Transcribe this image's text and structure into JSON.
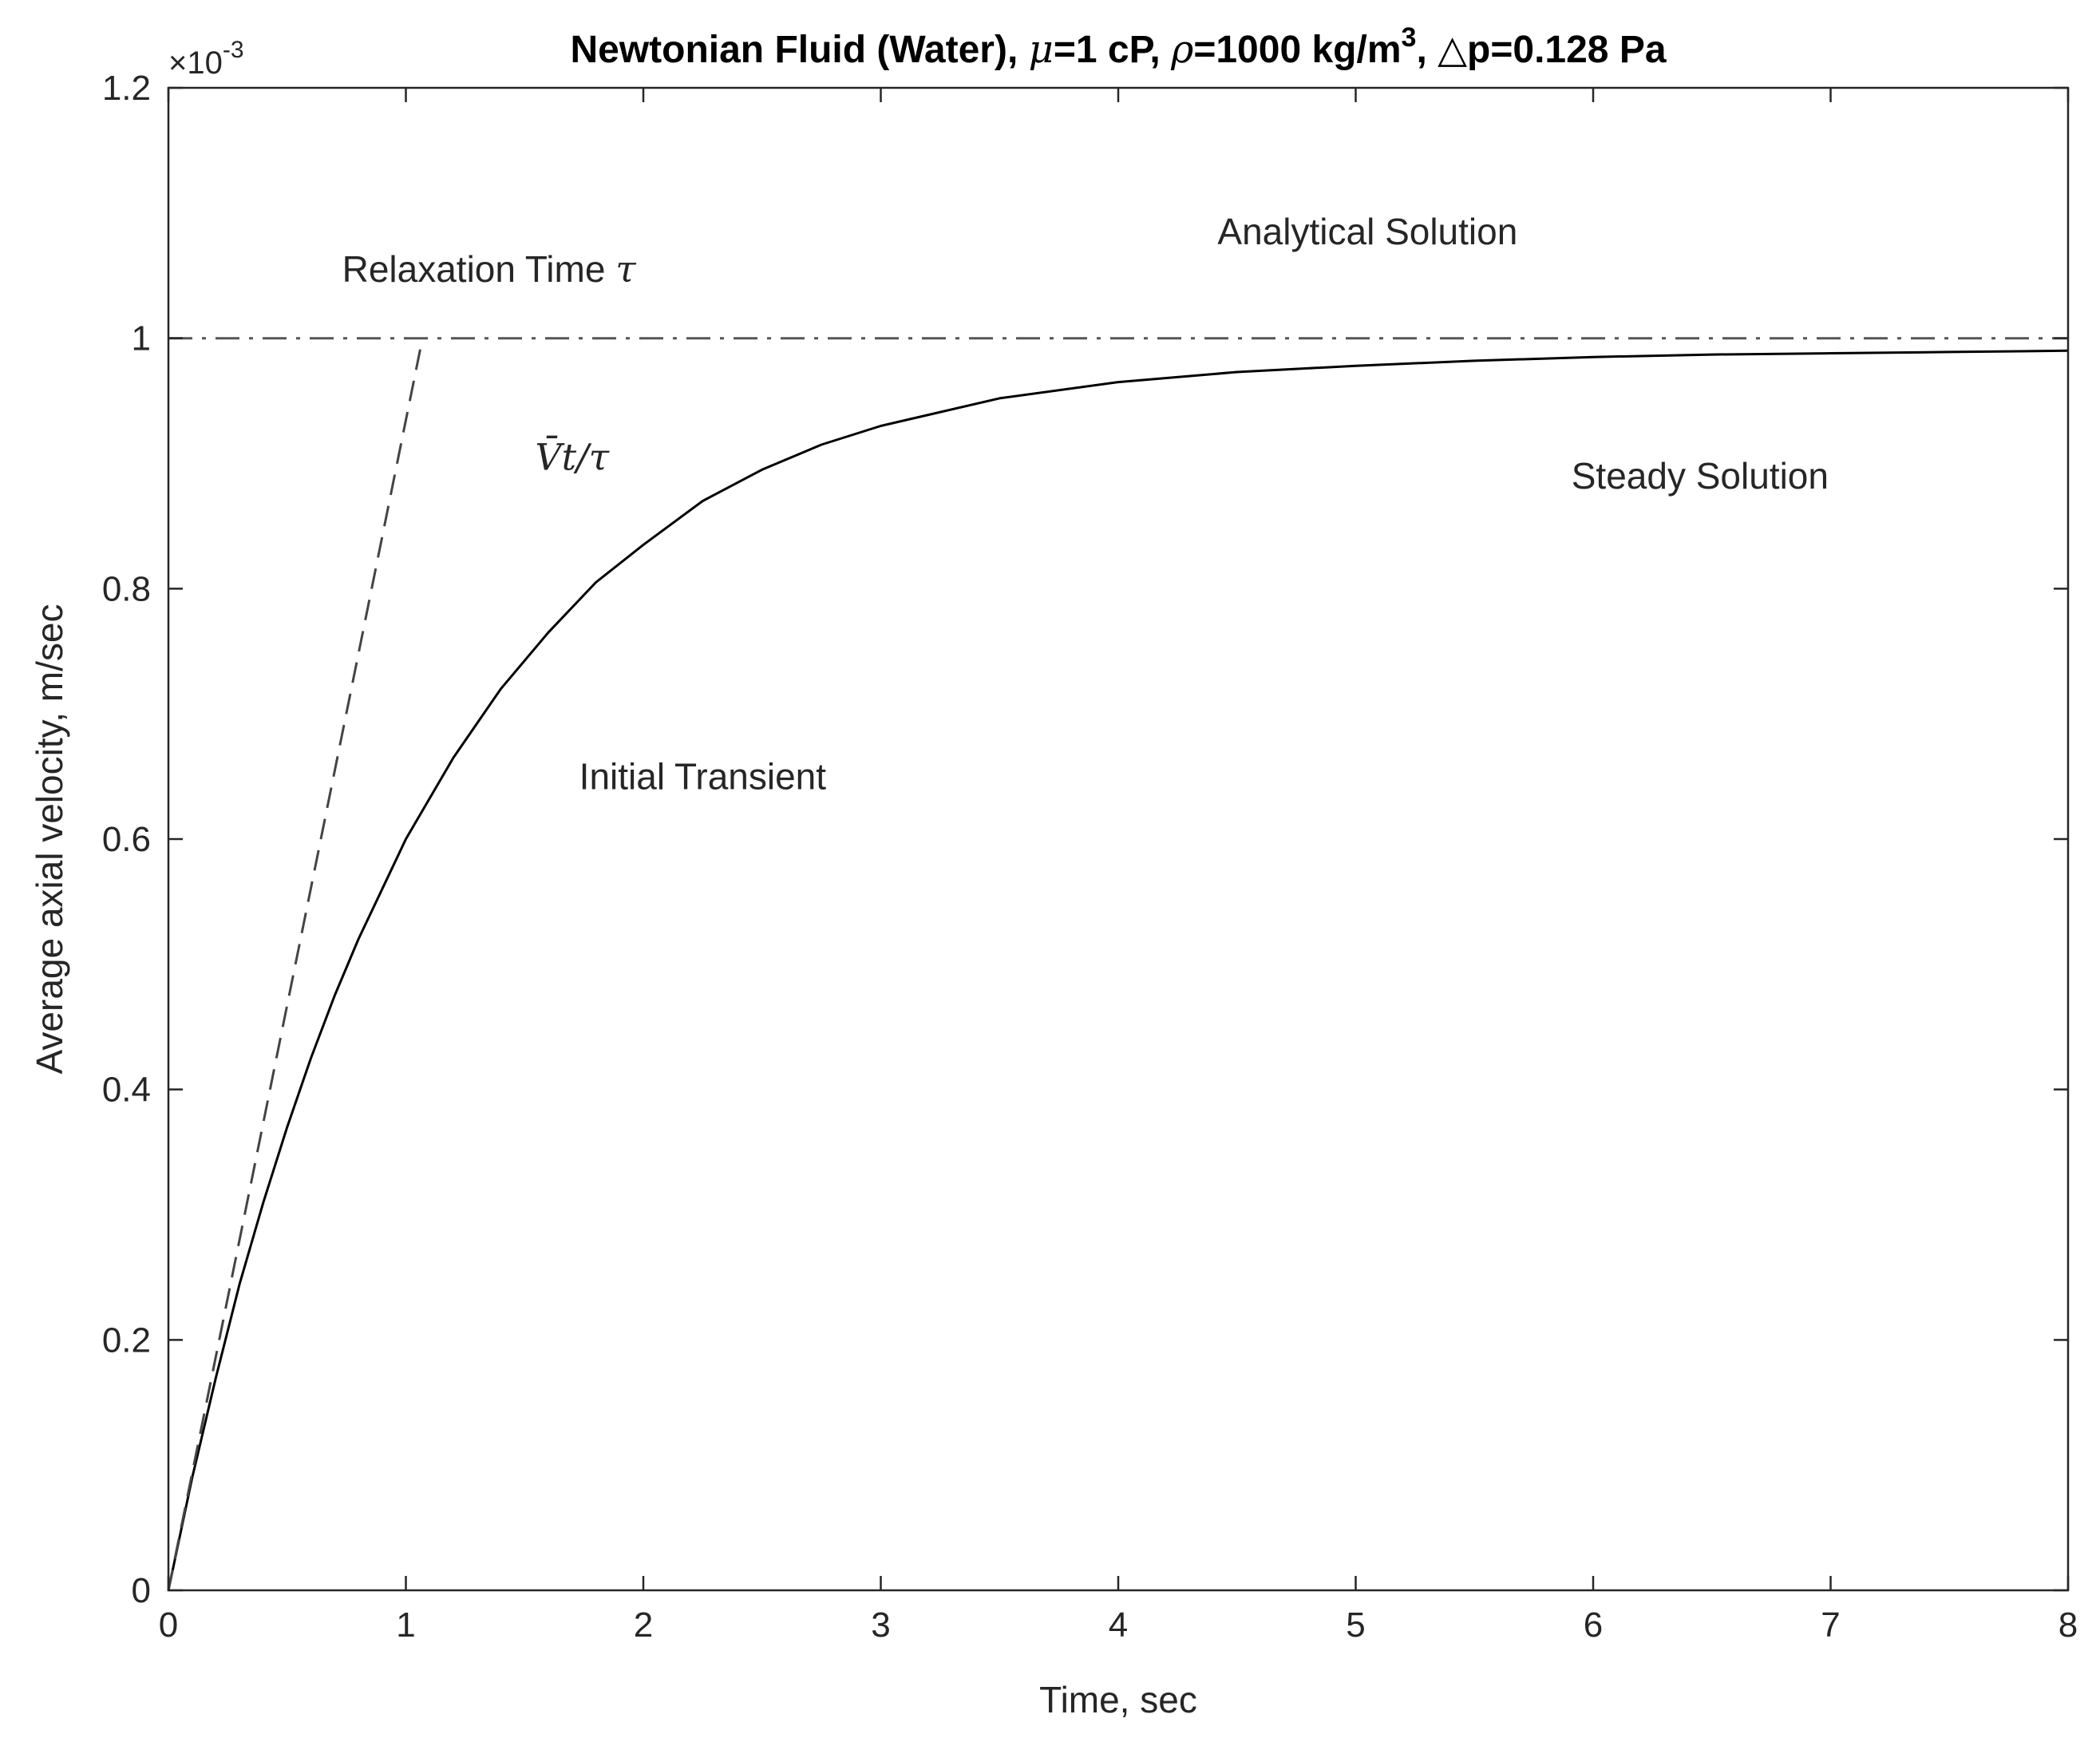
{
  "chart_data": {
    "type": "line",
    "title": {
      "p1": "Newtonian Fluid (Water), ",
      "mu": "μ",
      "p2": "=1 cP, ",
      "rho": "ρ",
      "p3": "=1000 kg/m",
      "sup": "3",
      "p4": ", ",
      "delta": "△",
      "p5": "p=0.128 Pa"
    },
    "xlabel": "Time, sec",
    "ylabel": "Average axial velocity, m/sec",
    "y_multiplier": {
      "base": "×10",
      "exp": "-3"
    },
    "xlim": [
      0,
      8
    ],
    "ylim": [
      0,
      1.2
    ],
    "x_ticks": [
      0,
      1,
      2,
      3,
      4,
      5,
      6,
      7,
      8
    ],
    "x_tick_labels": [
      "0",
      "1",
      "2",
      "3",
      "4",
      "5",
      "6",
      "7",
      "8"
    ],
    "y_ticks": [
      0,
      0.2,
      0.4,
      0.6,
      0.8,
      1.0,
      1.2
    ],
    "y_tick_labels": [
      "0",
      "0.2",
      "0.4",
      "0.6",
      "0.8",
      "1",
      "1.2"
    ],
    "grid": false,
    "series": [
      {
        "style": "solid",
        "color": "#000000",
        "x": [
          0,
          0.1,
          0.2,
          0.3,
          0.4,
          0.5,
          0.6,
          0.7,
          0.8,
          0.9,
          1.0,
          1.2,
          1.4,
          1.6,
          1.8,
          2.0,
          2.25,
          2.5,
          2.75,
          3.0,
          3.5,
          4.0,
          4.5,
          5.0,
          5.5,
          6.0,
          6.5,
          7.0,
          7.5,
          8.0
        ],
        "y": [
          0,
          0.09,
          0.17,
          0.245,
          0.31,
          0.37,
          0.425,
          0.475,
          0.52,
          0.56,
          0.6,
          0.665,
          0.72,
          0.765,
          0.805,
          0.835,
          0.87,
          0.895,
          0.915,
          0.93,
          0.952,
          0.965,
          0.973,
          0.978,
          0.982,
          0.985,
          0.987,
          0.988,
          0.989,
          0.99
        ]
      },
      {
        "style": "dashed",
        "color": "#444444",
        "x": [
          0,
          1.07
        ],
        "y": [
          0,
          1.0
        ]
      },
      {
        "style": "dashdot",
        "color": "#555555",
        "x": [
          0,
          8
        ],
        "y": [
          1.0,
          1.0
        ]
      }
    ],
    "annotations": [
      {
        "text": "Analytical Solution",
        "x": 5.05,
        "y": 1.075
      },
      {
        "text": "Relaxation Time ",
        "math": "τ",
        "x": 1.35,
        "y": 1.045
      },
      {
        "text": "",
        "math": "V̄t/τ",
        "x": 1.7,
        "y": 0.895
      },
      {
        "text": "Steady Solution",
        "x": 6.45,
        "y": 0.88
      },
      {
        "text": "Initial Transient",
        "x": 2.25,
        "y": 0.64
      }
    ]
  }
}
